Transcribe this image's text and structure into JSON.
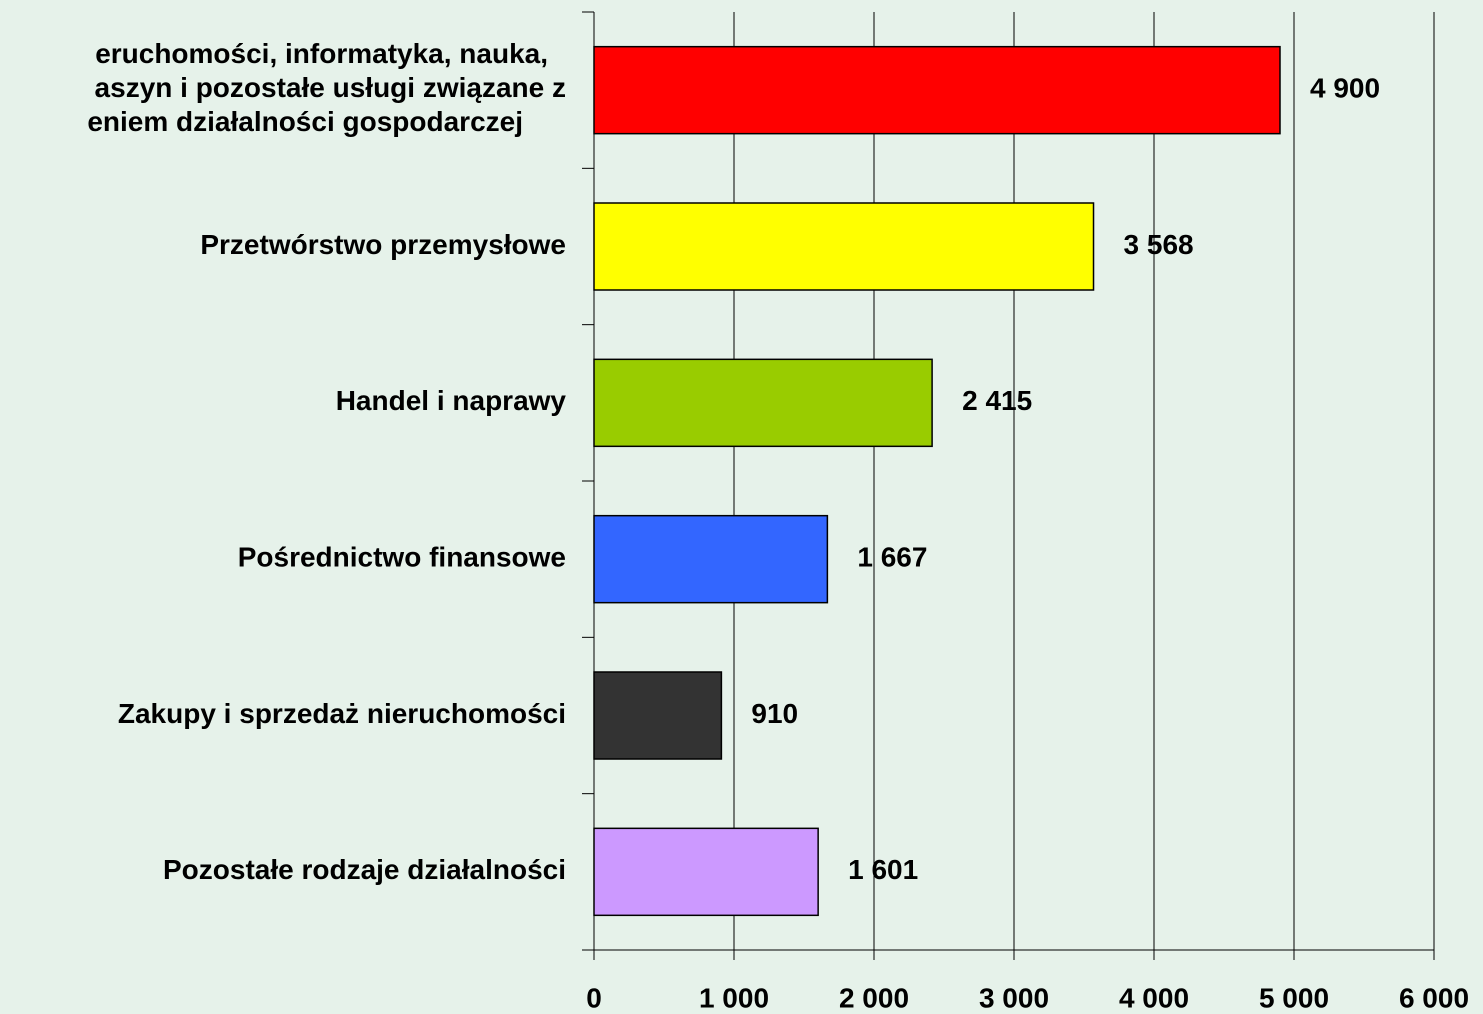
{
  "chart_data": {
    "type": "bar",
    "orientation": "horizontal",
    "categories": [
      "eruchomości, informatyka, nauka,\naszyn i pozostałe usługi związane z\neniem działalności gospodarczej",
      "Przetwórstwo przemysłowe",
      "Handel i naprawy",
      "Pośrednictwo finansowe",
      "Zakupy i sprzedaż nieruchomości",
      "Pozostałe rodzaje działalności"
    ],
    "values": [
      4900,
      3568,
      2415,
      1667,
      910,
      1601
    ],
    "value_labels": [
      "4 900",
      "3 568",
      "2 415",
      "1 667",
      "910",
      "1 601"
    ],
    "colors": [
      "#ff0000",
      "#ffff00",
      "#99cc00",
      "#3366ff",
      "#333333",
      "#cc99ff"
    ],
    "xlim": [
      0,
      6000
    ],
    "xticks": [
      0,
      {
        "value": 1000,
        "label": "1 000"
      },
      {
        "value": 2000,
        "label": "2 000"
      },
      {
        "value": 3000,
        "label": "3 000"
      },
      {
        "value": 4000,
        "label": "4 000"
      },
      {
        "value": 5000,
        "label": "5 000"
      },
      {
        "value": 6000,
        "label": "6 000"
      }
    ],
    "grid": true
  }
}
